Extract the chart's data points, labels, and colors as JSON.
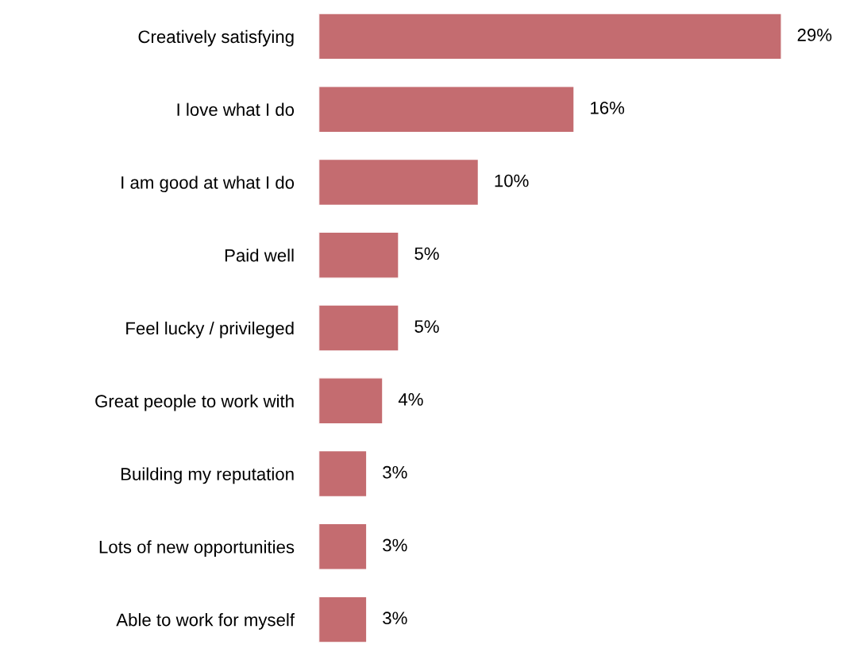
{
  "chart_data": {
    "type": "bar",
    "orientation": "horizontal",
    "categories": [
      "Creatively satisfying",
      "I love what I do",
      "I am good at what I do",
      "Paid well",
      "Feel lucky / privileged",
      "Great people to work with",
      "Building my reputation",
      "Lots of new opportunities",
      "Able to work for myself"
    ],
    "values": [
      29,
      16,
      10,
      5,
      5,
      4,
      3,
      3,
      3
    ],
    "value_labels": [
      "29%",
      "16%",
      "10%",
      "5%",
      "5%",
      "4%",
      "3%",
      "3%",
      "3%"
    ],
    "color": "#c46c70",
    "grid": false
  }
}
